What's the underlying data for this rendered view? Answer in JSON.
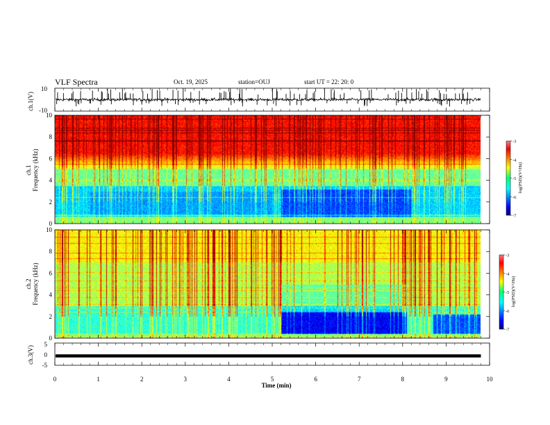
{
  "header": {
    "title": "VLF Spectra",
    "date": "Oct. 19, 2025",
    "station": "station=OUJ",
    "start": "start  UT =   22: 20: 0"
  },
  "chart_data": [
    {
      "type": "line",
      "name": "ch1-waveform",
      "ylabel": "ch.1(V)",
      "ylim": [
        -10,
        10
      ],
      "y_ticks": [
        "10",
        "-10"
      ],
      "xlim": [
        0,
        10
      ],
      "x_end": 9.8,
      "baseline": 0,
      "typical_amplitude": 2,
      "spike_max": 10
    },
    {
      "type": "heatmap",
      "name": "ch1-spectrogram",
      "ylabel": "ch.1 Frequency (kHz)",
      "ylabel_line1": "ch.1",
      "ylabel_line2": "Frequency  (kHz)",
      "ylim": [
        0,
        10
      ],
      "y_ticks": [
        "0",
        "2",
        "4",
        "6",
        "8",
        "10"
      ],
      "xlim": [
        0,
        10
      ],
      "x_end": 9.8,
      "colorbar": {
        "label": "log(PSD)(V²/Hz)",
        "range": [
          -7,
          -3
        ],
        "ticks": [
          "-3",
          "-4",
          "-5",
          "-6",
          "-7"
        ]
      },
      "quiet_interval_min": [
        5.2,
        8.2
      ],
      "notes": "strong broadband emission above ~5 kHz (log PSD about -3.5), weak 1-3 kHz band (about -6)"
    },
    {
      "type": "heatmap",
      "name": "ch2-spectrogram",
      "ylabel": "ch.2 Frequency (kHz)",
      "ylabel_line1": "ch.2",
      "ylabel_line2": "Frequency  (kHz)",
      "ylim": [
        0,
        10
      ],
      "y_ticks": [
        "0",
        "2",
        "4",
        "6",
        "8",
        "10"
      ],
      "xlim": [
        0,
        10
      ],
      "x_end": 9.8,
      "colorbar": {
        "label": "log(PSD)(V²/Hz)",
        "range": [
          -7,
          -3
        ],
        "ticks": [
          "-3",
          "-4",
          "-5",
          "-6",
          "-7"
        ]
      },
      "quiet_interval_min": [
        5.2,
        8.1
      ],
      "notes": "moderate emission (log PSD about -4.5) above 2 kHz, deep minimum 0-2.5 kHz between 5.2 and 8.1 min"
    },
    {
      "type": "line",
      "name": "ch3-waveform",
      "ylabel": "ch.3(V)",
      "ylim": [
        -5,
        5
      ],
      "y_ticks": [
        "5",
        "0",
        "-5"
      ],
      "xlim": [
        0,
        10
      ],
      "x_end": 9.8,
      "value": -0.8
    }
  ],
  "xaxis": {
    "label": "Time  (min)",
    "ticks": [
      "0",
      "1",
      "2",
      "3",
      "4",
      "5",
      "6",
      "7",
      "8",
      "9",
      "10"
    ]
  },
  "colors": {
    "jet_low": "#000080",
    "jet_high": "#800000",
    "frame": "#000000"
  }
}
